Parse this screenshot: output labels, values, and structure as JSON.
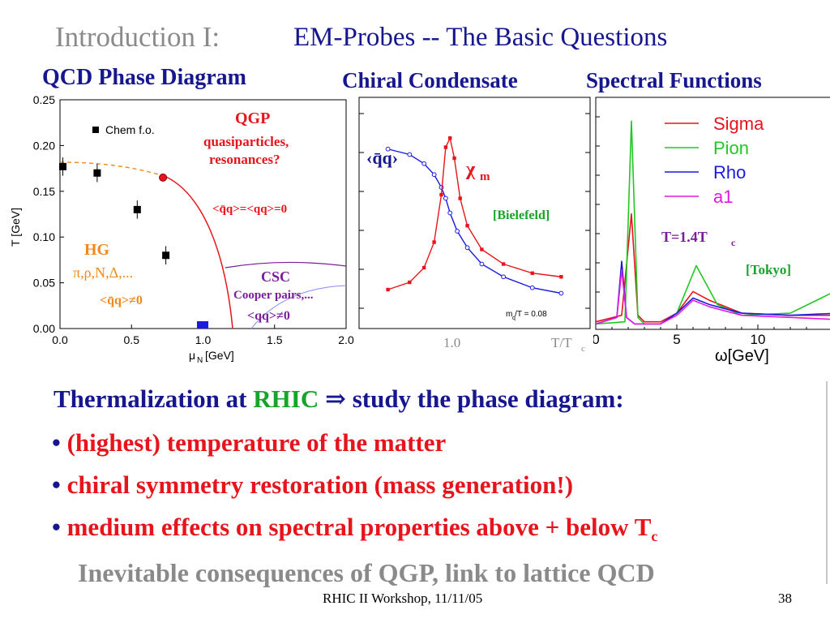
{
  "slide": {
    "title_prefix": "Introduction I:",
    "title_main": "EM-Probes -- The Basic Questions",
    "footer_center": "RHIC II Workshop, 11/11/05",
    "page_number": "38"
  },
  "headers": {
    "phase": "QCD Phase Diagram",
    "chiral": "Chiral Condensate",
    "spectral": "Spectral Functions"
  },
  "body": {
    "thermal_a": "Thermalization at",
    "thermal_rhic": "RHIC",
    "thermal_arrow": "⇒",
    "thermal_b": "study the phase diagram:",
    "bullets": [
      {
        "mark": "•",
        "text": "(highest) temperature of the matter",
        "sub": ""
      },
      {
        "mark": "•",
        "text": "chiral symmetry restoration (mass generation!)",
        "sub": ""
      },
      {
        "mark": "•",
        "text": "medium effects on spectral properties above + below T",
        "sub": "c"
      }
    ],
    "conclusion": "Inevitable consequences of QGP,  link to lattice QCD"
  },
  "chart_data": [
    {
      "type": "scatter",
      "xlabel_main": "μ",
      "xlabel_sub": "N",
      "xlabel_unit": "[GeV]",
      "ylabel": "T [GeV]",
      "xlim": [
        0,
        2.0
      ],
      "ylim": [
        0,
        0.25
      ],
      "xticks": [
        "0.0",
        "0.5",
        "1.0",
        "1.5",
        "2.0"
      ],
      "yticks": [
        "0.00",
        "0.05",
        "0.10",
        "0.15",
        "0.20",
        "0.25"
      ],
      "legend": "Chem f.o.",
      "series": [
        {
          "name": "Chem f.o.",
          "x": [
            0.02,
            0.26,
            0.54,
            0.74
          ],
          "y": [
            0.177,
            0.17,
            0.13,
            0.08
          ],
          "yerr": [
            0.01,
            0.01,
            0.01,
            0.01
          ]
        }
      ],
      "critical_point": {
        "x": 0.72,
        "y": 0.165
      },
      "annotations": {
        "qgp": "QGP",
        "qgp_sub1": "quasiparticles,",
        "qgp_sub2": "resonances?",
        "qgp_cond": "<q̄q>=<qq>=0",
        "hg": "HG",
        "hg_sub": "π,ρ,N,Δ,...",
        "hg_cond": "<q̄q>≠0",
        "csc": "CSC",
        "csc_sub": "Cooper pairs,...",
        "csc_cond": "<qq>≠0"
      }
    },
    {
      "type": "line",
      "x_tick": "1.0",
      "xlabel": "T/T",
      "xlabel_sub": "c",
      "series": [
        {
          "name": "‹q̄q›",
          "x": [
            0.6,
            0.75,
            0.85,
            0.92,
            0.97,
            1.0,
            1.03,
            1.08,
            1.15,
            1.25,
            1.4,
            1.6,
            1.8
          ],
          "y": [
            0.85,
            0.82,
            0.77,
            0.71,
            0.64,
            0.58,
            0.5,
            0.4,
            0.31,
            0.22,
            0.15,
            0.09,
            0.06
          ]
        },
        {
          "name": "χ",
          "name_sub": "m",
          "x": [
            0.6,
            0.75,
            0.85,
            0.92,
            0.97,
            1.0,
            1.03,
            1.06,
            1.1,
            1.15,
            1.25,
            1.4,
            1.6,
            1.8
          ],
          "y": [
            0.08,
            0.12,
            0.2,
            0.34,
            0.6,
            0.86,
            0.91,
            0.8,
            0.58,
            0.43,
            0.3,
            0.22,
            0.17,
            0.15
          ]
        }
      ],
      "labels": {
        "condensate": "‹q̄q›",
        "chi": "χ",
        "chi_sub": "m",
        "source": "[Bielefeld]",
        "mass": "m /T = 0.08",
        "mass_sub": "q"
      }
    },
    {
      "type": "line",
      "xlabel": "ω[GeV]",
      "xticks": [
        "0",
        "5",
        "10"
      ],
      "xlim": [
        0,
        15
      ],
      "series": [
        {
          "name": "Sigma",
          "color": "#e8141c",
          "x": [
            0,
            1.6,
            2.2,
            2.6,
            3.0,
            4,
            5,
            6,
            7,
            9,
            12,
            15
          ],
          "y": [
            0.02,
            0.05,
            0.52,
            0.05,
            0.02,
            0.02,
            0.06,
            0.16,
            0.12,
            0.06,
            0.05,
            0.05
          ]
        },
        {
          "name": "Pion",
          "color": "#22c822",
          "x": [
            0,
            1.8,
            2.2,
            2.6,
            3.0,
            4,
            5,
            6.2,
            7.5,
            9,
            12,
            15
          ],
          "y": [
            0.01,
            0.02,
            0.95,
            0.04,
            0.01,
            0.01,
            0.06,
            0.28,
            0.1,
            0.05,
            0.06,
            0.17
          ]
        },
        {
          "name": "Rho",
          "color": "#1a1ae0",
          "x": [
            0,
            1.3,
            1.6,
            1.9,
            2.4,
            4,
            5,
            6,
            7,
            9,
            12,
            15
          ],
          "y": [
            0.01,
            0.04,
            0.3,
            0.04,
            0.01,
            0.01,
            0.06,
            0.13,
            0.1,
            0.06,
            0.05,
            0.06
          ]
        },
        {
          "name": "a1",
          "color": "#e01ae0",
          "x": [
            0,
            1.3,
            1.6,
            1.9,
            2.4,
            4,
            5,
            6,
            7,
            9,
            12,
            15
          ],
          "y": [
            0.01,
            0.04,
            0.26,
            0.04,
            0.01,
            0.01,
            0.05,
            0.12,
            0.09,
            0.05,
            0.04,
            0.03
          ]
        }
      ],
      "labels": {
        "temp": "T=1.4T",
        "temp_sub": "c",
        "source": "[Tokyo]"
      }
    }
  ],
  "colors": {
    "navy": "#16168f",
    "red": "#e8141c",
    "green": "#17a42a",
    "gray": "#8a8a8a",
    "purple": "#7a1e9a",
    "orange": "#f08a1a"
  }
}
